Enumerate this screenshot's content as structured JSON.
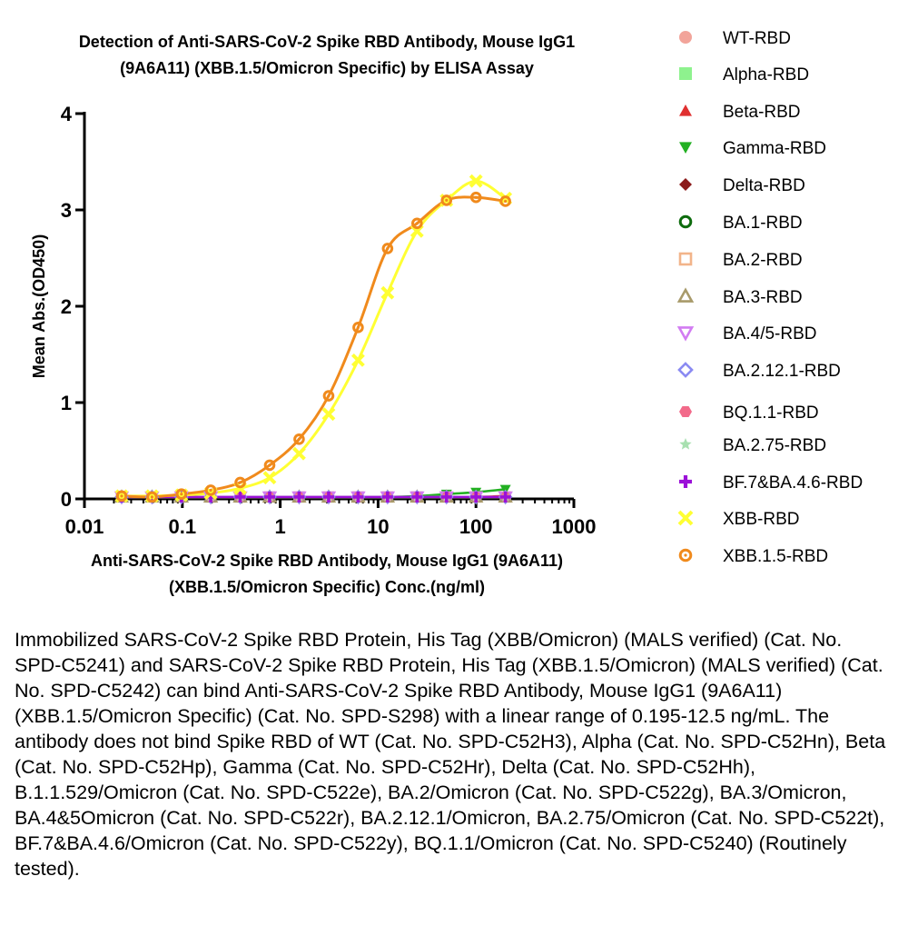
{
  "chart_data": {
    "type": "scatter",
    "title": [
      "Detection of Anti-SARS-CoV-2 Spike RBD Antibody, Mouse IgG1",
      "(9A6A11) (XBB.1.5/Omicron Specific) by ELISA Assay"
    ],
    "xlabel": [
      "Anti-SARS-CoV-2 Spike RBD Antibody, Mouse IgG1 (9A6A11)",
      "(XBB.1.5/Omicron Specific) Conc.(ng/ml)"
    ],
    "ylabel": "Mean Abs.(OD450)",
    "x_scale": "log",
    "xlim": [
      0.01,
      1000
    ],
    "ylim": [
      0,
      4
    ],
    "x_ticks": [
      0.01,
      0.1,
      1,
      10,
      100,
      1000
    ],
    "x_tick_labels": [
      "0.01",
      "0.1",
      "1",
      "10",
      "100",
      "1000"
    ],
    "y_ticks": [
      0,
      1,
      2,
      3,
      4
    ],
    "y_tick_labels": [
      "0",
      "1",
      "2",
      "3",
      "4"
    ],
    "legend_position": "right",
    "x": [
      0.024,
      0.049,
      0.098,
      0.195,
      0.39,
      0.78,
      1.56,
      3.125,
      6.25,
      12.5,
      25,
      50,
      100,
      200
    ],
    "series": [
      {
        "name": "WT-RBD",
        "marker": "circle",
        "color": "#f2a49a",
        "y": [
          0.02,
          0.02,
          0.02,
          0.02,
          0.02,
          0.02,
          0.02,
          0.02,
          0.02,
          0.02,
          0.02,
          0.02,
          0.02,
          0.02
        ]
      },
      {
        "name": "Alpha-RBD",
        "marker": "square",
        "color": "#8ef28e",
        "y": [
          0.02,
          0.02,
          0.02,
          0.02,
          0.02,
          0.02,
          0.02,
          0.02,
          0.02,
          0.02,
          0.02,
          0.02,
          0.02,
          0.02
        ]
      },
      {
        "name": "Beta-RBD",
        "marker": "triangle-up",
        "color": "#e03030",
        "y": [
          0.02,
          0.02,
          0.02,
          0.02,
          0.02,
          0.02,
          0.02,
          0.02,
          0.02,
          0.02,
          0.02,
          0.02,
          0.02,
          0.03
        ]
      },
      {
        "name": "Gamma-RBD",
        "marker": "triangle-down",
        "color": "#22b022",
        "y": [
          0.02,
          0.02,
          0.02,
          0.02,
          0.02,
          0.02,
          0.02,
          0.02,
          0.02,
          0.02,
          0.03,
          0.05,
          0.07,
          0.1
        ]
      },
      {
        "name": "Delta-RBD",
        "marker": "diamond",
        "color": "#8b1a1a",
        "y": [
          0.02,
          0.02,
          0.02,
          0.02,
          0.02,
          0.02,
          0.02,
          0.02,
          0.02,
          0.02,
          0.02,
          0.02,
          0.02,
          0.02
        ]
      },
      {
        "name": "BA.1-RBD",
        "marker": "ring",
        "color": "#0d6b0d",
        "y": [
          0.02,
          0.02,
          0.02,
          0.02,
          0.02,
          0.02,
          0.02,
          0.02,
          0.02,
          0.02,
          0.02,
          0.02,
          0.02,
          0.02
        ]
      },
      {
        "name": "BA.2-RBD",
        "marker": "square-open",
        "color": "#f2b48a",
        "y": [
          0.02,
          0.02,
          0.02,
          0.02,
          0.02,
          0.02,
          0.02,
          0.02,
          0.02,
          0.02,
          0.02,
          0.02,
          0.02,
          0.02
        ]
      },
      {
        "name": "BA.3-RBD",
        "marker": "triangle-open",
        "color": "#a89a6a",
        "y": [
          0.02,
          0.02,
          0.02,
          0.02,
          0.02,
          0.02,
          0.02,
          0.02,
          0.02,
          0.02,
          0.02,
          0.02,
          0.02,
          0.02
        ]
      },
      {
        "name": "BA.4/5-RBD",
        "marker": "triangle-down-open",
        "color": "#d27cf2",
        "y": [
          0.02,
          0.02,
          0.02,
          0.02,
          0.02,
          0.02,
          0.02,
          0.02,
          0.02,
          0.02,
          0.02,
          0.02,
          0.02,
          0.02
        ]
      },
      {
        "name": "BA.2.12.1-RBD",
        "marker": "diamond-open",
        "color": "#8a8af2",
        "y": [
          0.02,
          0.02,
          0.02,
          0.02,
          0.02,
          0.02,
          0.02,
          0.02,
          0.02,
          0.02,
          0.02,
          0.02,
          0.02,
          0.02
        ]
      },
      {
        "name": "BQ.1.1-RBD",
        "marker": "hexagon",
        "color": "#f26a8a",
        "y": [
          0.02,
          0.02,
          0.02,
          0.02,
          0.02,
          0.02,
          0.02,
          0.02,
          0.02,
          0.02,
          0.02,
          0.02,
          0.02,
          0.02
        ]
      },
      {
        "name": "BA.2.75-RBD",
        "marker": "star",
        "color": "#a8e0b0",
        "y": [
          0.02,
          0.02,
          0.02,
          0.02,
          0.02,
          0.02,
          0.02,
          0.02,
          0.02,
          0.02,
          0.02,
          0.02,
          0.02,
          0.02
        ]
      },
      {
        "name": "BF.7&BA.4.6-RBD",
        "marker": "plus",
        "color": "#9b10d8",
        "y": [
          0.02,
          0.02,
          0.02,
          0.02,
          0.02,
          0.02,
          0.02,
          0.02,
          0.02,
          0.02,
          0.02,
          0.02,
          0.02,
          0.02
        ]
      },
      {
        "name": "XBB-RBD",
        "marker": "cross",
        "color": "#ffff33",
        "y": [
          0.03,
          0.03,
          0.04,
          0.06,
          0.11,
          0.22,
          0.47,
          0.88,
          1.44,
          2.14,
          2.78,
          3.1,
          3.3,
          3.12
        ]
      },
      {
        "name": "XBB.1.5-RBD",
        "marker": "ring-dot",
        "color": "#f08a1c",
        "y": [
          0.03,
          0.02,
          0.05,
          0.09,
          0.17,
          0.35,
          0.62,
          1.07,
          1.78,
          2.6,
          2.86,
          3.1,
          3.13,
          3.09
        ]
      }
    ]
  },
  "caption": "Immobilized SARS-CoV-2 Spike RBD Protein, His Tag (XBB/Omicron) (MALS verified) (Cat. No. SPD-C5241) and SARS-CoV-2 Spike RBD Protein, His Tag (XBB.1.5/Omicron) (MALS verified) (Cat. No. SPD-C5242) can bind Anti-SARS-CoV-2 Spike RBD Antibody, Mouse IgG1 (9A6A11) (XBB.1.5/Omicron Specific) (Cat. No. SPD-S298) with a linear range of 0.195-12.5 ng/mL. The antibody does not bind Spike RBD of WT (Cat. No. SPD-C52H3), Alpha (Cat. No. SPD-C52Hn), Beta (Cat. No. SPD-C52Hp), Gamma (Cat. No. SPD-C52Hr), Delta (Cat. No. SPD-C52Hh), B.1.1.529/Omicron (Cat. No.  SPD-C522e), BA.2/Omicron (Cat. No. SPD-C522g), BA.3/Omicron, BA.4&5Omicron (Cat. No. SPD-C522r), BA.2.12.1/Omicron, BA.2.75/Omicron (Cat. No. SPD-C522t), BF.7&BA.4.6/Omicron (Cat. No. SPD-C522y), BQ.1.1/Omicron (Cat. No. SPD-C5240) (Routinely tested)."
}
